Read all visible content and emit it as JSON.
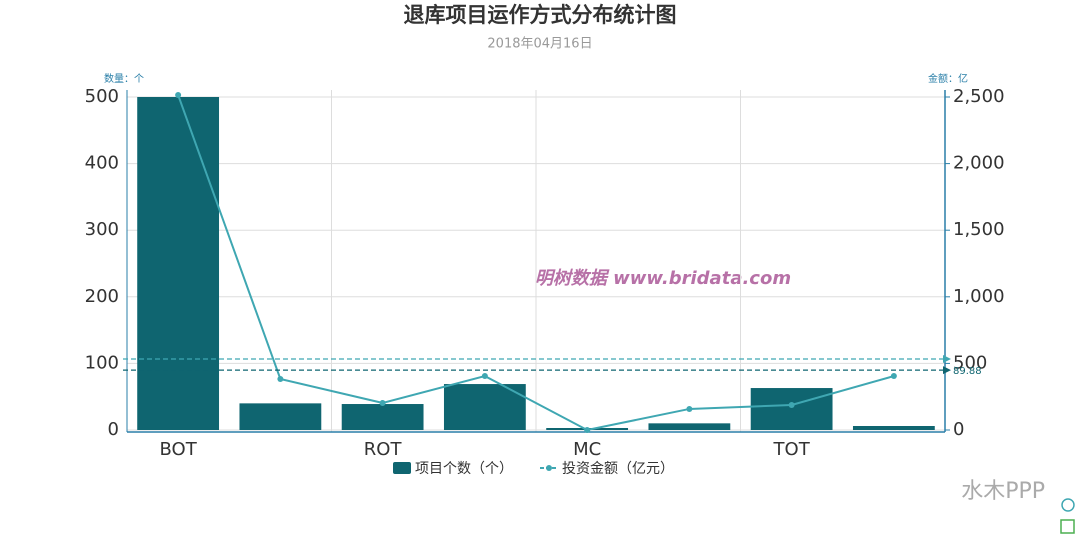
{
  "chart_data": {
    "type": "bar-line",
    "title": "退库项目运作方式分布统计图",
    "subtitle": "2018年04月16日",
    "y_axis_name": "数量：个",
    "y2_axis_name": "金额：亿",
    "watermark": "明树数据 www.bridata.com",
    "categories": [
      "BOT",
      null,
      "ROT",
      null,
      "MC",
      null,
      "TOT",
      null
    ],
    "series": [
      {
        "name": "项目个数（个）",
        "type": "bar",
        "color": "#0f6570",
        "values": [
          500,
          40,
          39,
          69,
          3,
          10,
          63,
          6
        ]
      },
      {
        "name": "投资金额（亿元）",
        "type": "line",
        "color": "#3fa7b2",
        "axis": "y2",
        "values": [
          2515,
          383,
          203,
          405,
          0,
          158,
          188,
          405
        ]
      }
    ],
    "mark_lines": [
      {
        "axis": "y2",
        "color": "#3fa7b2",
        "value": 533
      },
      {
        "axis": "y",
        "color": "#0f6570",
        "value": 89.88
      }
    ],
    "ylim": [
      0,
      500
    ],
    "yticks": [
      0,
      100,
      200,
      300,
      400,
      500
    ],
    "y2lim": [
      0,
      2500
    ],
    "y2ticks": [
      0,
      500,
      {
        "value": 1000,
        "label": "1,000"
      },
      {
        "value": 1500,
        "label": "1,500"
      },
      {
        "value": 2000,
        "label": "2,000"
      },
      {
        "value": 2500,
        "label": "2,500"
      }
    ],
    "grid": true,
    "legend": "bottom",
    "credit": "水木PPP"
  }
}
